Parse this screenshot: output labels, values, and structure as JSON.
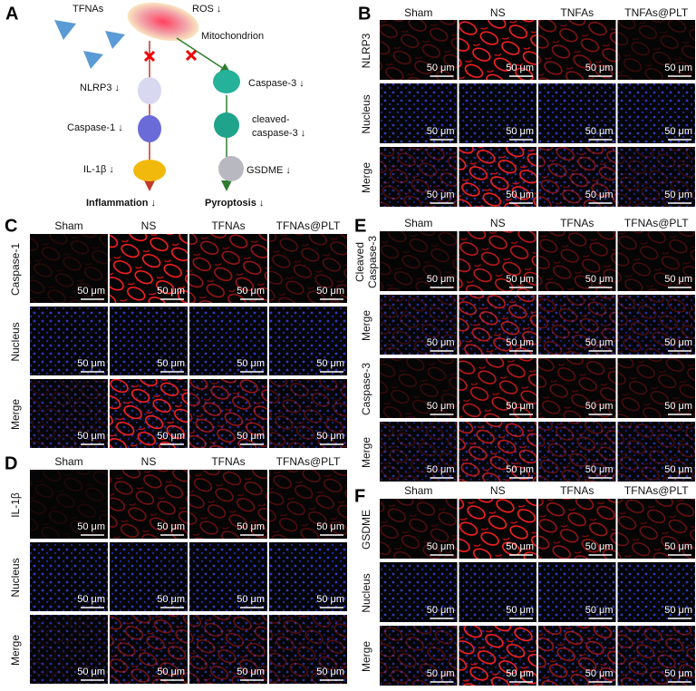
{
  "panel_a": {
    "letter": "A",
    "tfnas": "TFNAs",
    "ros": "ROS ↓",
    "mitochondrion": "Mitochondrion",
    "nlrp3": "NLRP3 ↓",
    "caspase1": "Caspase-1 ↓",
    "il1b": "IL-1β ↓",
    "caspase3": "Caspase-3 ↓",
    "cleaved_line1": "cleaved-",
    "cleaved_line2": "caspase-3 ↓",
    "gsdme": "GSDME ↓",
    "inflammation": "Inflammation ↓",
    "pyroptosis": "Pyroptosis ↓"
  },
  "panels": [
    {
      "letter": "B",
      "columns": [
        "Sham",
        "NS",
        "TNFAs",
        "TNFAs@PLT"
      ],
      "rows": [
        [
          "NLRP3"
        ],
        [
          "Nucleus"
        ],
        [
          "Merge"
        ]
      ],
      "scale_bar": "50 μm"
    },
    {
      "letter": "C",
      "columns": [
        "Sham",
        "NS",
        "TFNAs",
        "TFNAs@PLT"
      ],
      "rows": [
        [
          "Caspase-1"
        ],
        [
          "Nucleus"
        ],
        [
          "Merge"
        ]
      ],
      "scale_bar": "50 μm"
    },
    {
      "letter": "D",
      "columns": [
        "Sham",
        "NS",
        "TFNAs",
        "TFNAs@PLT"
      ],
      "rows": [
        [
          "IL-1β"
        ],
        [
          "Nucleus"
        ],
        [
          "Merge"
        ]
      ],
      "scale_bar": "50 μm"
    },
    {
      "letter": "E",
      "columns": [
        "Sham",
        "NS",
        "TFNAs",
        "TFNAs@PLT"
      ],
      "rows": [
        [
          "Cleaved",
          "Caspase-3"
        ],
        [
          "Merge"
        ],
        [
          "Caspase-3"
        ],
        [
          "Merge"
        ]
      ],
      "scale_bar": "50 μm"
    },
    {
      "letter": "F",
      "columns": [
        "Sham",
        "NS",
        "TFNAs",
        "TFNAs@PLT"
      ],
      "rows": [
        [
          "GSDME"
        ],
        [
          "Nucleus"
        ],
        [
          "Merge"
        ]
      ],
      "scale_bar": "50 μm"
    }
  ]
}
